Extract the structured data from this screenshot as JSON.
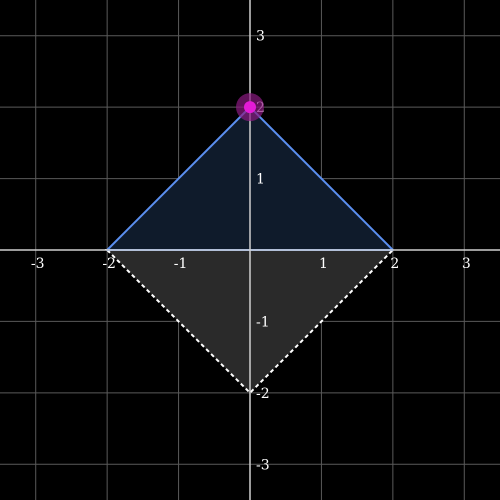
{
  "graph": {
    "background": "#000000",
    "grid_color": "#5a5a5a",
    "axis_color": "#cfcfcf",
    "x_range": [
      -3.5,
      3.5
    ],
    "y_range": [
      -3.5,
      3.5
    ],
    "x_ticks": [
      {
        "value": -3,
        "label": "-3"
      },
      {
        "value": -2,
        "label": "-2"
      },
      {
        "value": -1,
        "label": "-1"
      },
      {
        "value": 1,
        "label": "1"
      },
      {
        "value": 2,
        "label": "2"
      },
      {
        "value": 3,
        "label": "3"
      }
    ],
    "y_ticks": [
      {
        "value": 3,
        "label": "3"
      },
      {
        "value": 2,
        "label": "2"
      },
      {
        "value": 1,
        "label": "1"
      },
      {
        "value": -1,
        "label": "-1"
      },
      {
        "value": -2,
        "label": "-2"
      },
      {
        "value": -3,
        "label": "-3"
      }
    ],
    "upper_triangle": {
      "vertices": [
        [
          -2,
          0
        ],
        [
          0,
          2
        ],
        [
          2,
          0
        ]
      ],
      "stroke": "#5b8ff0",
      "fill": "#0f1b2b"
    },
    "lower_triangle": {
      "vertices": [
        [
          -2,
          0
        ],
        [
          0,
          -2
        ],
        [
          2,
          0
        ]
      ],
      "stroke": "#ffffff",
      "fill": "#2a2a2a",
      "dashed": true
    },
    "highlight_point": {
      "x": 0,
      "y": 2,
      "color": "#e41bd6",
      "halo": "#8a1a80"
    }
  }
}
